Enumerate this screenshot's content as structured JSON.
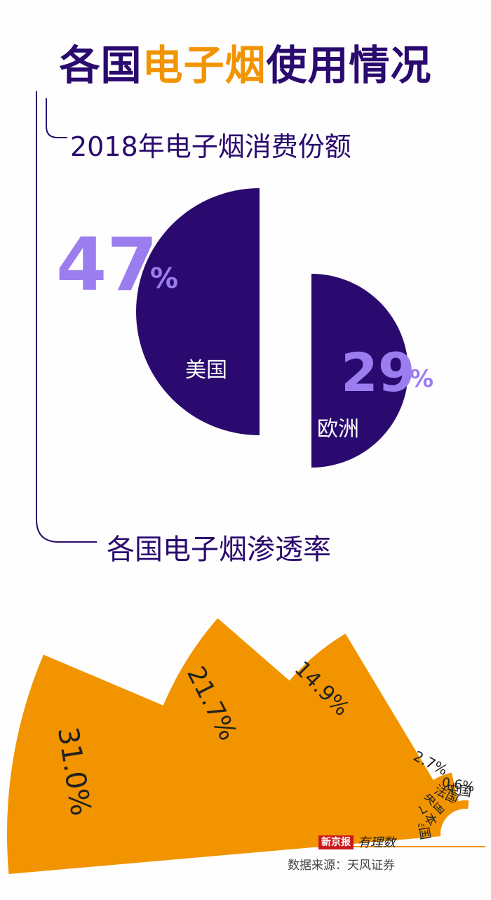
{
  "title": {
    "part1": "各国",
    "highlight": "电子烟",
    "part2": "使用情况"
  },
  "section1": {
    "heading": "2018年电子烟消费份额"
  },
  "section2": {
    "heading": "各国电子烟渗透率"
  },
  "colors": {
    "purple": "#2a0a6e",
    "lavender": "#9b7df0",
    "orange": "#f29400"
  },
  "chart_data": [
    {
      "type": "pie",
      "title": "2018年电子烟消费份额",
      "slices": [
        {
          "label": "美国",
          "value": 47,
          "display": "47",
          "unit": "%"
        },
        {
          "label": "欧洲",
          "value": 29,
          "display": "29",
          "unit": "%"
        }
      ]
    },
    {
      "type": "bar",
      "title": "各国电子烟渗透率",
      "categories": [
        "美国",
        "日本",
        "英国",
        "法国",
        "中国"
      ],
      "values": [
        31.0,
        21.7,
        14.9,
        2.7,
        0.6
      ],
      "labels": [
        "31.0%",
        "21.7%",
        "14.9%",
        "2.7%",
        "0.6%"
      ]
    }
  ],
  "footer": {
    "brand": "新京报",
    "brand2": "有理数",
    "source": "数据来源：天风证券"
  }
}
